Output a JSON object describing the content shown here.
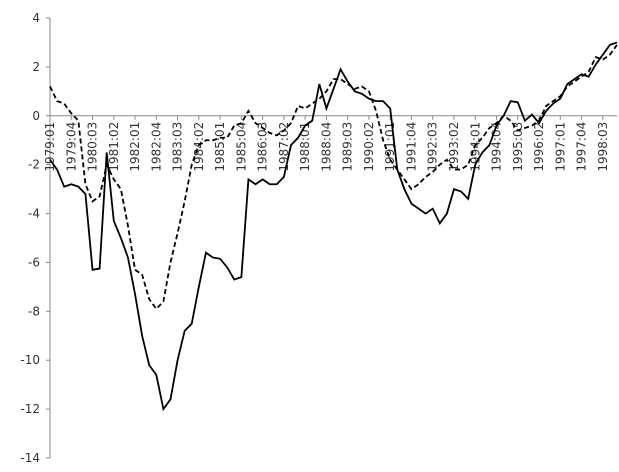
{
  "chart_data": {
    "type": "line",
    "categories": [
      "1979:01",
      null,
      null,
      "1979:04",
      null,
      null,
      "1980:03",
      null,
      null,
      "1981:02",
      null,
      null,
      "1982:01",
      null,
      null,
      "1982:04",
      null,
      null,
      "1983:03",
      null,
      null,
      "1984:02",
      null,
      null,
      "1985:01",
      null,
      null,
      "1985:04",
      null,
      null,
      "1986:03",
      null,
      null,
      "1987:02",
      null,
      null,
      "1988:01",
      null,
      null,
      "1988:04",
      null,
      null,
      "1989:03",
      null,
      null,
      "1990:02",
      null,
      null,
      "1991:01",
      null,
      null,
      "1991:04",
      null,
      null,
      "1992:03",
      null,
      null,
      "1993:02",
      null,
      null,
      "1994:01",
      null,
      null,
      "1994:04",
      null,
      null,
      "1995:03",
      null,
      null,
      "1996:02",
      null,
      null,
      "1997:01",
      null,
      null,
      "1997:04",
      null,
      null,
      "1998:03",
      null,
      null
    ],
    "series": [
      {
        "color": "#000000",
        "dashed": false,
        "values": [
          -1.8,
          -2.2,
          -2.9,
          -2.8,
          -2.9,
          -3.2,
          -6.3,
          -6.25,
          -1.5,
          -4.3,
          -5.0,
          -5.8,
          -7.3,
          -9.0,
          -10.2,
          -10.6,
          -12.0,
          -11.6,
          -10.0,
          -8.8,
          -8.5,
          -7.0,
          -5.6,
          -5.8,
          -5.85,
          -6.2,
          -6.7,
          -6.6,
          -2.6,
          -2.8,
          -2.6,
          -2.8,
          -2.8,
          -2.5,
          -1.2,
          -0.9,
          -0.4,
          -0.2,
          1.3,
          0.3,
          1.1,
          1.9,
          1.4,
          1.0,
          0.9,
          0.7,
          0.6,
          0.6,
          0.3,
          -2.2,
          -3.0,
          -3.6,
          -3.8,
          -4.0,
          -3.8,
          -4.4,
          -4.0,
          -3.0,
          -3.1,
          -3.4,
          -2.0,
          -1.5,
          -1.2,
          -0.4,
          0.0,
          0.6,
          0.55,
          -0.2,
          0.05,
          -0.3,
          0.2,
          0.5,
          0.7,
          1.3,
          1.5,
          1.7,
          1.6,
          2.1,
          2.5,
          2.9,
          3.0
        ]
      },
      {
        "color": "#000000",
        "dashed": true,
        "values": [
          1.2,
          0.6,
          0.5,
          0.1,
          -0.2,
          -2.8,
          -3.5,
          -3.3,
          -2.0,
          -2.6,
          -3.0,
          -4.5,
          -6.3,
          -6.5,
          -7.5,
          -7.9,
          -7.6,
          -6.0,
          -4.8,
          -3.5,
          -2.0,
          -1.2,
          -1.0,
          -1.0,
          -0.9,
          -0.9,
          -0.4,
          -0.3,
          0.2,
          -0.3,
          -0.5,
          -0.7,
          -0.8,
          -0.6,
          -0.3,
          0.4,
          0.3,
          0.5,
          0.7,
          1.0,
          1.5,
          1.5,
          1.3,
          1.1,
          1.2,
          1.0,
          0.2,
          -1.0,
          -1.8,
          -2.2,
          -2.6,
          -3.0,
          -2.8,
          -2.5,
          -2.3,
          -2.0,
          -1.8,
          -2.2,
          -2.2,
          -2.0,
          -1.2,
          -0.9,
          -0.5,
          -0.3,
          0.0,
          -0.2,
          -0.6,
          -0.5,
          -0.4,
          -0.2,
          0.4,
          0.6,
          0.8,
          1.2,
          1.4,
          1.6,
          1.8,
          2.4,
          2.3,
          2.5,
          2.9
        ]
      }
    ],
    "ylim": [
      -14,
      4
    ],
    "yticks": [
      -14,
      -12,
      -10,
      -8,
      -6,
      -4,
      -2,
      0,
      2,
      4
    ],
    "grid": false
  }
}
